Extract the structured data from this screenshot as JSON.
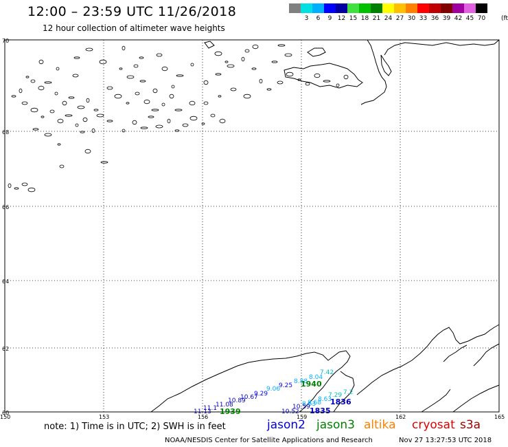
{
  "header": {
    "title": "12:00 – 23:59 UTC 11/26/2018",
    "subtitle": "12 hour collection of altimeter wave heights"
  },
  "legend": {
    "items": [
      {
        "label": "",
        "color": "#808080"
      },
      {
        "label": "3",
        "color": "#00e0e0"
      },
      {
        "label": "6",
        "color": "#00b0ff"
      },
      {
        "label": "9",
        "color": "#0000ff"
      },
      {
        "label": "12",
        "color": "#0000a0"
      },
      {
        "label": "15",
        "color": "#40e040"
      },
      {
        "label": "18",
        "color": "#00c000"
      },
      {
        "label": "21",
        "color": "#008000"
      },
      {
        "label": "24",
        "color": "#ffff00"
      },
      {
        "label": "27",
        "color": "#ffc000"
      },
      {
        "label": "30",
        "color": "#ff8000"
      },
      {
        "label": "33",
        "color": "#ff0000"
      },
      {
        "label": "36",
        "color": "#c00000"
      },
      {
        "label": "39",
        "color": "#800000"
      },
      {
        "label": "42",
        "color": "#a000a0"
      },
      {
        "label": "45",
        "color": "#e060e0"
      },
      {
        "label": "70",
        "color": "#000000"
      }
    ],
    "unit": "(ft)"
  },
  "map": {
    "lat_labels": [
      "70",
      "68",
      "66",
      "64",
      "62",
      "60"
    ],
    "lon_labels": [
      "150",
      "153",
      "156",
      "159",
      "162",
      "165"
    ],
    "tracks": [
      {
        "satellite": "jason3",
        "time": "1940",
        "time_color": "#008000",
        "points": [
          {
            "swh": "7.42",
            "color": "#00c0c0"
          },
          {
            "swh": "8.04",
            "color": "#00b0ff"
          },
          {
            "swh": "8.88",
            "color": "#00b0ff"
          },
          {
            "swh": "9.25",
            "color": "#0000ff"
          },
          {
            "swh": "9.06",
            "color": "#00b0ff"
          },
          {
            "swh": "9.29",
            "color": "#0000ff"
          },
          {
            "swh": "10.67",
            "color": "#0000c0"
          }
        ]
      },
      {
        "satellite": "jason3",
        "time": "1939",
        "time_color": "#008000",
        "points": [
          {
            "swh": "10.89",
            "color": "#0000c0"
          },
          {
            "swh": "11.08",
            "color": "#0000c0"
          },
          {
            "swh": "11.1",
            "color": "#0000c0"
          },
          {
            "swh": "11.13",
            "color": "#0000c0"
          }
        ]
      },
      {
        "satellite": "jason2",
        "time": "1836",
        "time_color": "#0000c0",
        "points": [
          {
            "swh": "7.29",
            "color": "#00c0c0"
          },
          {
            "swh": "8.63",
            "color": "#00b0ff"
          },
          {
            "swh": "8.68",
            "color": "#00b0ff"
          },
          {
            "swh": "8.63",
            "color": "#00b0ff"
          }
        ]
      },
      {
        "satellite": "jason2",
        "time": "1835",
        "time_color": "#0000c0",
        "points": [
          {
            "swh": "10.59",
            "color": "#0000c0"
          },
          {
            "swh": "10.52",
            "color": "#0000c0"
          }
        ]
      }
    ],
    "extra_time_label": "7.2"
  },
  "footer": {
    "note": "note: 1) Time is in UTC; 2) SWH is in feet",
    "satellites": [
      {
        "name": "jason2",
        "color": "#0000e0"
      },
      {
        "name": "jason3",
        "color": "#008000"
      },
      {
        "name": "altika",
        "color": "#ff8000"
      },
      {
        "name": "cryosat",
        "color": "#e00000"
      },
      {
        "name": "s3a",
        "color": "#a00000"
      }
    ],
    "credit": "NOAA/NESDIS Center for Satellite Applications and Research",
    "timestamp": "Nov 27 13:27:53 UTC 2018"
  }
}
